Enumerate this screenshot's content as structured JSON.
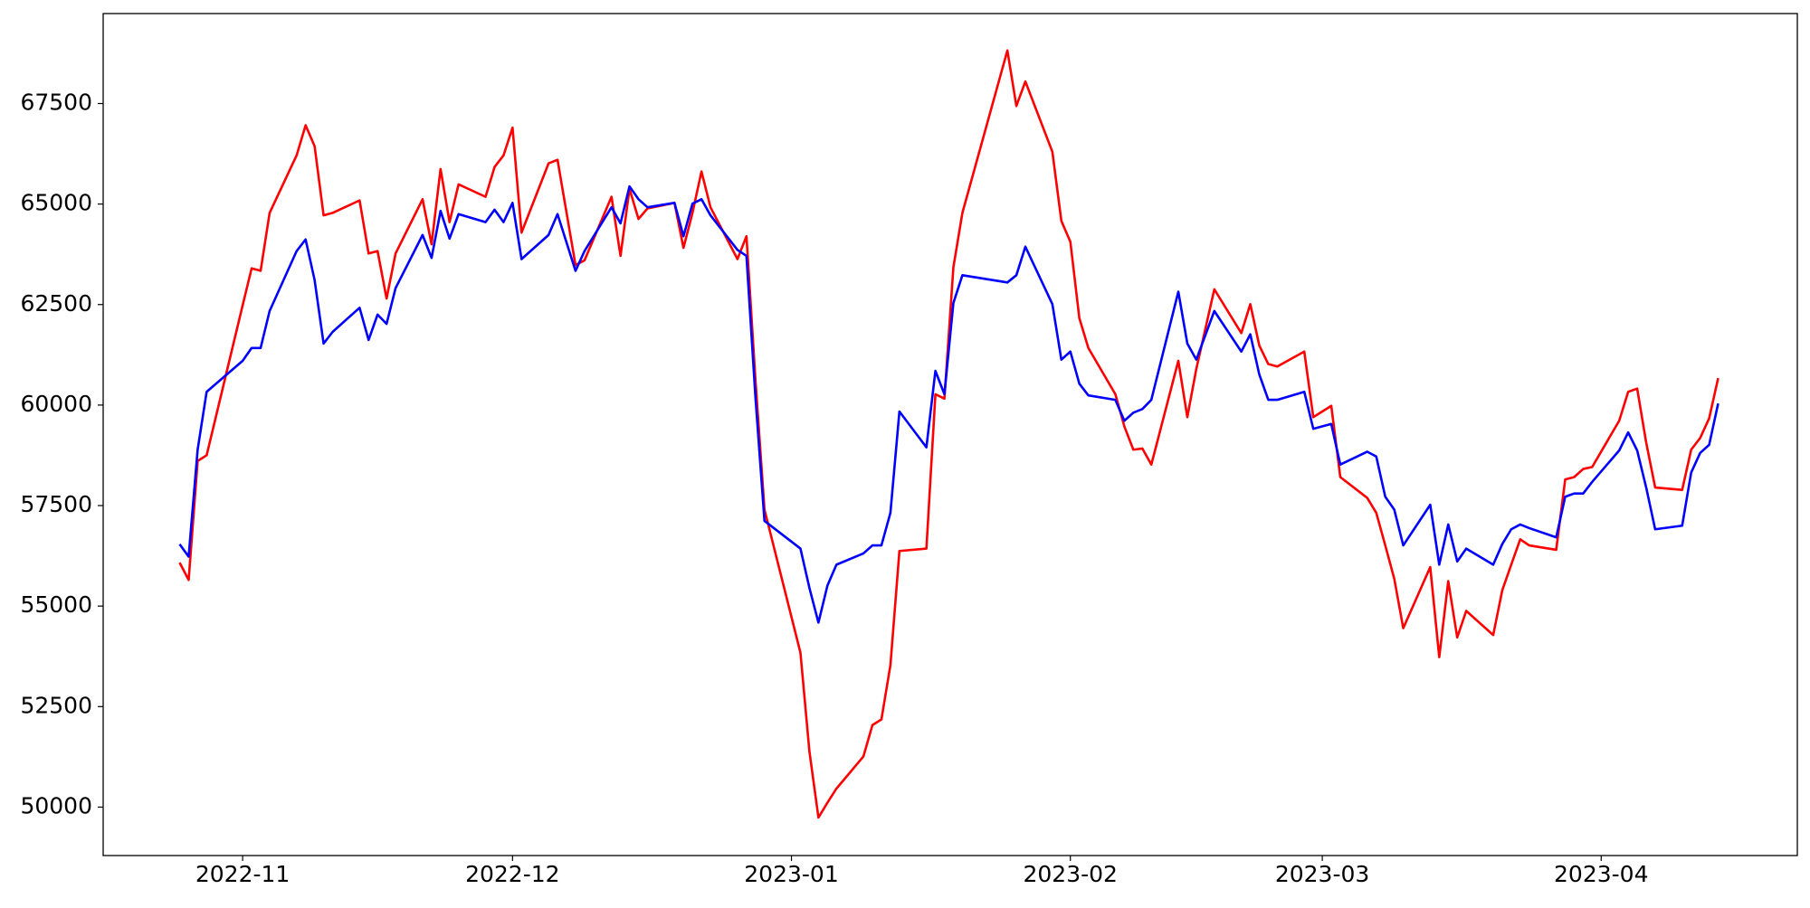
{
  "chart_data": {
    "type": "line",
    "x": [
      -7,
      -6,
      -5,
      -4,
      0,
      1,
      2,
      3,
      6,
      7,
      8,
      9,
      10,
      13,
      14,
      15,
      16,
      17,
      20,
      21,
      22,
      23,
      24,
      27,
      28,
      29,
      30,
      31,
      34,
      35,
      37,
      38,
      41,
      42,
      43,
      44,
      45,
      48,
      49,
      50,
      51,
      52,
      55,
      56,
      57,
      58,
      62,
      63,
      64,
      65,
      66,
      69,
      70,
      71,
      72,
      73,
      76,
      77,
      78,
      79,
      80,
      85,
      86,
      87,
      90,
      91,
      92,
      93,
      94,
      97,
      98,
      99,
      100,
      101,
      104,
      105,
      106,
      108,
      111,
      112,
      113,
      114,
      115,
      118,
      119,
      121,
      122,
      125,
      126,
      127,
      128,
      129,
      132,
      133,
      134,
      135,
      136,
      139,
      140,
      141,
      142,
      143,
      146,
      147,
      148,
      149,
      150,
      153,
      154,
      155,
      156,
      157,
      160,
      161,
      162,
      163,
      164
    ],
    "series": [
      {
        "color": "#ff0000",
        "values": [
          56080,
          55650,
          58610,
          58750,
          62480,
          63400,
          63340,
          64780,
          66210,
          66960,
          66440,
          64720,
          64780,
          65090,
          63770,
          63830,
          62650,
          63770,
          65120,
          64000,
          65870,
          64550,
          65490,
          65180,
          65920,
          66210,
          66900,
          64290,
          66010,
          66100,
          63480,
          63600,
          65180,
          63710,
          65380,
          64630,
          64890,
          65030,
          63910,
          64780,
          65810,
          64920,
          63630,
          64200,
          60620,
          57400,
          53840,
          51380,
          49740,
          50110,
          50460,
          51260,
          52040,
          52180,
          53530,
          56370,
          56430,
          60270,
          60160,
          63430,
          64780,
          68820,
          67440,
          68050,
          66300,
          64580,
          64060,
          62160,
          61420,
          60270,
          59470,
          58890,
          58920,
          58520,
          61100,
          59700,
          60900,
          62880,
          61790,
          62510,
          61480,
          61020,
          60960,
          61330,
          59700,
          59980,
          58210,
          57690,
          57320,
          56510,
          55680,
          54450,
          55970,
          53730,
          55620,
          54220,
          54880,
          54280,
          55390,
          56030,
          56660,
          56510,
          56400,
          58150,
          58210,
          58410,
          58460,
          59610,
          60330,
          60410,
          59070,
          57950,
          57890,
          58890,
          59180,
          59670,
          60670
        ]
      },
      {
        "color": "#0000ff",
        "values": [
          56540,
          56230,
          58890,
          60330,
          61100,
          61420,
          61420,
          62340,
          63830,
          64120,
          63110,
          61530,
          61820,
          62420,
          61620,
          62250,
          62020,
          62910,
          64230,
          63660,
          64830,
          64140,
          64750,
          64550,
          64860,
          64550,
          65030,
          63630,
          64230,
          64750,
          63340,
          63830,
          64920,
          64520,
          65440,
          65120,
          64920,
          65030,
          64200,
          65010,
          65120,
          64720,
          63860,
          63710,
          60190,
          57120,
          56430,
          55450,
          54590,
          55510,
          56030,
          56310,
          56510,
          56510,
          57320,
          59840,
          58950,
          60850,
          60270,
          62540,
          63230,
          63050,
          63230,
          63940,
          62510,
          61130,
          61330,
          60530,
          60240,
          60130,
          59610,
          59810,
          59900,
          60130,
          62820,
          61530,
          61130,
          62340,
          61330,
          61760,
          60760,
          60130,
          60130,
          60330,
          59410,
          59530,
          58520,
          58840,
          58720,
          57720,
          57400,
          56510,
          57520,
          56030,
          57030,
          56110,
          56430,
          56030,
          56540,
          56910,
          57030,
          56940,
          56710,
          57720,
          57800,
          57800,
          58090,
          58870,
          59320,
          58870,
          57950,
          56910,
          57000,
          58320,
          58810,
          59010,
          60040
        ]
      }
    ],
    "xlim": [
      -15.5,
      172.8
    ],
    "xticks": [
      {
        "value": 0,
        "label": "2022-11"
      },
      {
        "value": 30,
        "label": "2022-12"
      },
      {
        "value": 61,
        "label": "2023-01"
      },
      {
        "value": 92,
        "label": "2023-02"
      },
      {
        "value": 120,
        "label": "2023-03"
      },
      {
        "value": 151,
        "label": "2023-04"
      }
    ],
    "ylim": [
      48795,
      69738
    ],
    "yticks": [
      50000,
      52500,
      55000,
      57500,
      60000,
      62500,
      65000,
      67500
    ],
    "grid": false
  }
}
